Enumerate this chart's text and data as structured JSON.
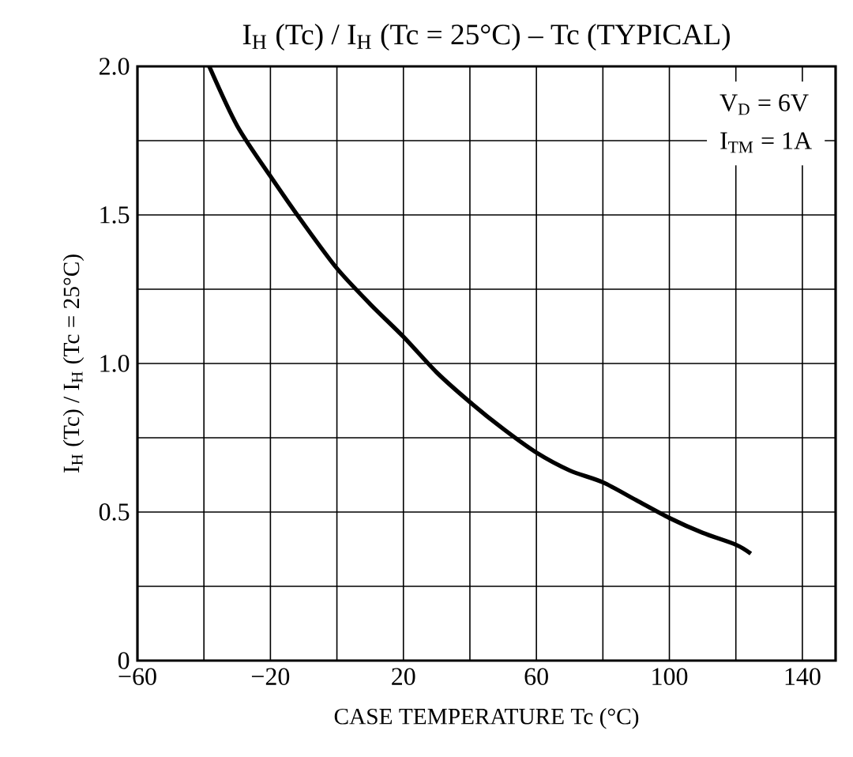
{
  "chart_data": {
    "type": "line",
    "title": "I$_{H}$ (Tc) / I$_{H}$ (Tc = 25°C)  –  Tc   (TYPICAL)",
    "xlabel": "CASE TEMPERATURE   Tc   (°C)",
    "ylabel": "I$_{H}$ (Tc) / I$_{H}$ (Tc = 25°C)",
    "annotations": [
      "V$_{D}$ = 6V",
      "I$_{TM}$ = 1A"
    ],
    "x": [
      -38.4,
      -30,
      -20,
      -10,
      0,
      10,
      20,
      30,
      40,
      50,
      60,
      70,
      80,
      90,
      100,
      110,
      120,
      124.5
    ],
    "series": [
      {
        "color": "#000000",
        "values": [
          2.0,
          1.8,
          1.63,
          1.47,
          1.32,
          1.2,
          1.09,
          0.97,
          0.87,
          0.78,
          0.7,
          0.64,
          0.6,
          0.54,
          0.48,
          0.43,
          0.39,
          0.36
        ]
      }
    ],
    "xlim": [
      -60,
      150
    ],
    "ylim": [
      0,
      2.0
    ],
    "xticks": [
      {
        "value": -60,
        "label": "−60"
      },
      {
        "value": -40,
        "label": null
      },
      {
        "value": -20,
        "label": "−20"
      },
      {
        "value": 0,
        "label": null
      },
      20,
      {
        "value": 40,
        "label": null
      },
      60,
      {
        "value": 80,
        "label": null
      },
      100,
      {
        "value": 120,
        "label": null
      },
      140
    ],
    "yticks": [
      0,
      {
        "value": 0.25,
        "label": null
      },
      0.5,
      {
        "value": 0.75,
        "label": null
      },
      {
        "value": 1.0,
        "label": "1.0"
      },
      {
        "value": 1.25,
        "label": null
      },
      1.5,
      {
        "value": 1.75,
        "label": null
      },
      {
        "value": 2.0,
        "label": "2.0"
      }
    ],
    "grid": true,
    "marker": "none",
    "line_style": "solid"
  }
}
